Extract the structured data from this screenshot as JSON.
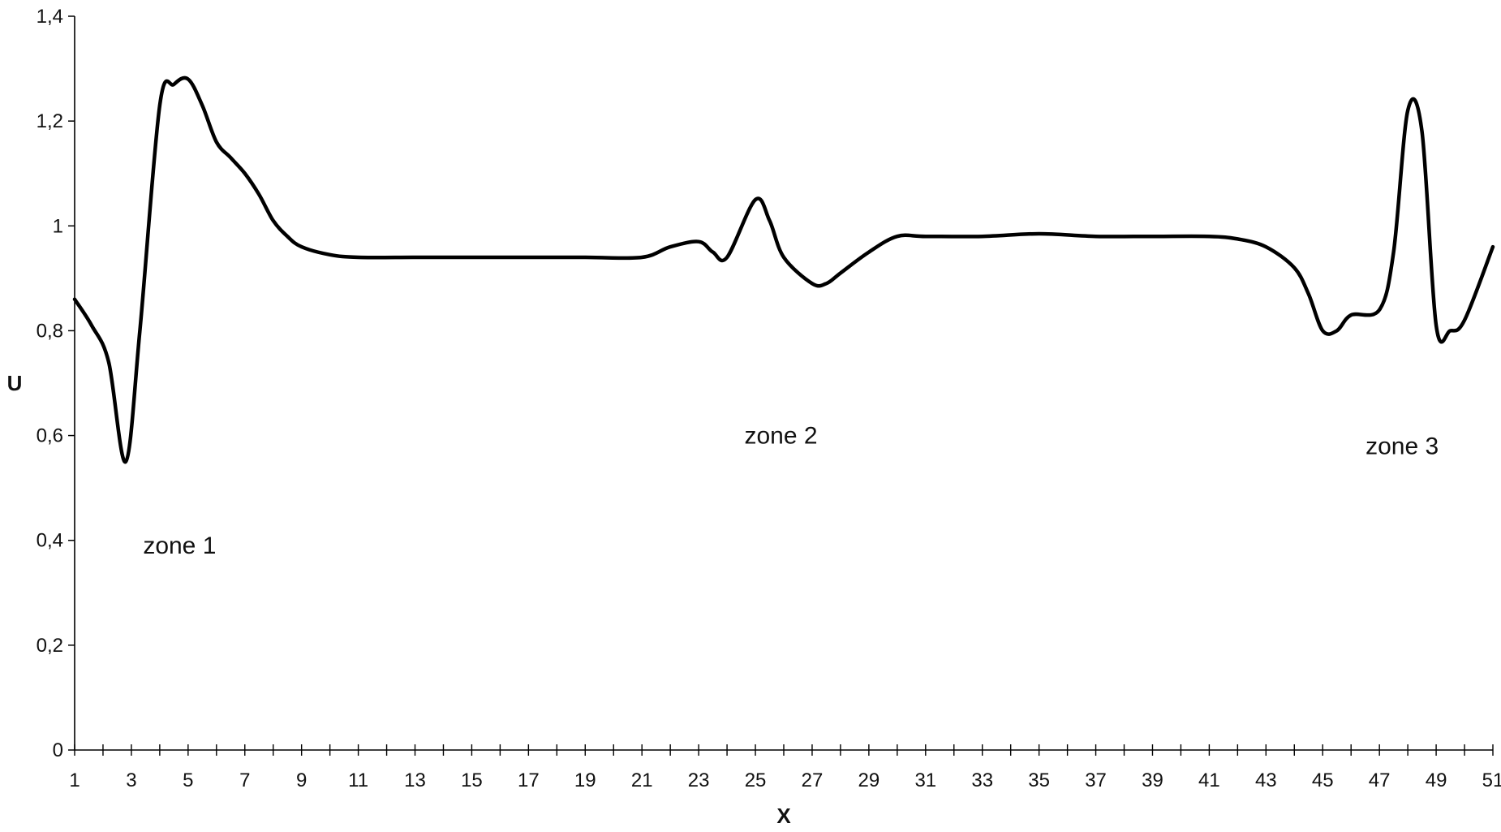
{
  "chart_data": {
    "type": "line",
    "title": "",
    "xlabel": "X",
    "ylabel": "U",
    "xlim": [
      1,
      51
    ],
    "ylim": [
      0,
      1.4
    ],
    "grid": false,
    "legend": "none",
    "line_color": "#000000",
    "x_ticks": [
      "1",
      "3",
      "5",
      "7",
      "9",
      "11",
      "13",
      "15",
      "17",
      "19",
      "21",
      "23",
      "25",
      "27",
      "29",
      "31",
      "33",
      "35",
      "37",
      "39",
      "41",
      "43",
      "45",
      "47",
      "49",
      "51"
    ],
    "y_ticks": [
      "0",
      "0,2",
      "0,4",
      "0,6",
      "0,8",
      "1",
      "1,2",
      "1,4"
    ],
    "series": [
      {
        "x": [
          1,
          1.6,
          2.2,
          2.8,
          3.3,
          4,
          4.5,
          5,
          5.5,
          6,
          6.5,
          7,
          7.5,
          8,
          8.5,
          9,
          10,
          11,
          13,
          15,
          17,
          19,
          21,
          22,
          23,
          23.5,
          24,
          25,
          25.5,
          26,
          27,
          27.5,
          28,
          29,
          30,
          31,
          33,
          35,
          37,
          39,
          41,
          42,
          43,
          44,
          44.5,
          45,
          45.5,
          46,
          47,
          47.5,
          48,
          48.5,
          49,
          49.5,
          50,
          51
        ],
        "y": [
          0.86,
          0.81,
          0.74,
          0.55,
          0.8,
          1.23,
          1.27,
          1.28,
          1.23,
          1.16,
          1.13,
          1.1,
          1.06,
          1.01,
          0.98,
          0.96,
          0.945,
          0.94,
          0.94,
          0.94,
          0.94,
          0.94,
          0.94,
          0.96,
          0.97,
          0.95,
          0.94,
          1.05,
          1.01,
          0.94,
          0.89,
          0.89,
          0.91,
          0.95,
          0.98,
          0.98,
          0.98,
          0.985,
          0.98,
          0.98,
          0.98,
          0.975,
          0.96,
          0.92,
          0.87,
          0.8,
          0.8,
          0.83,
          0.84,
          0.95,
          1.22,
          1.18,
          0.81,
          0.8,
          0.82,
          0.96
        ]
      }
    ],
    "annotations": [
      {
        "text": "zone 1",
        "x": 4.7,
        "y": 0.39
      },
      {
        "text": "zone 2",
        "x": 25.9,
        "y": 0.6
      },
      {
        "text": "zone 3",
        "x": 47.8,
        "y": 0.58
      }
    ]
  }
}
